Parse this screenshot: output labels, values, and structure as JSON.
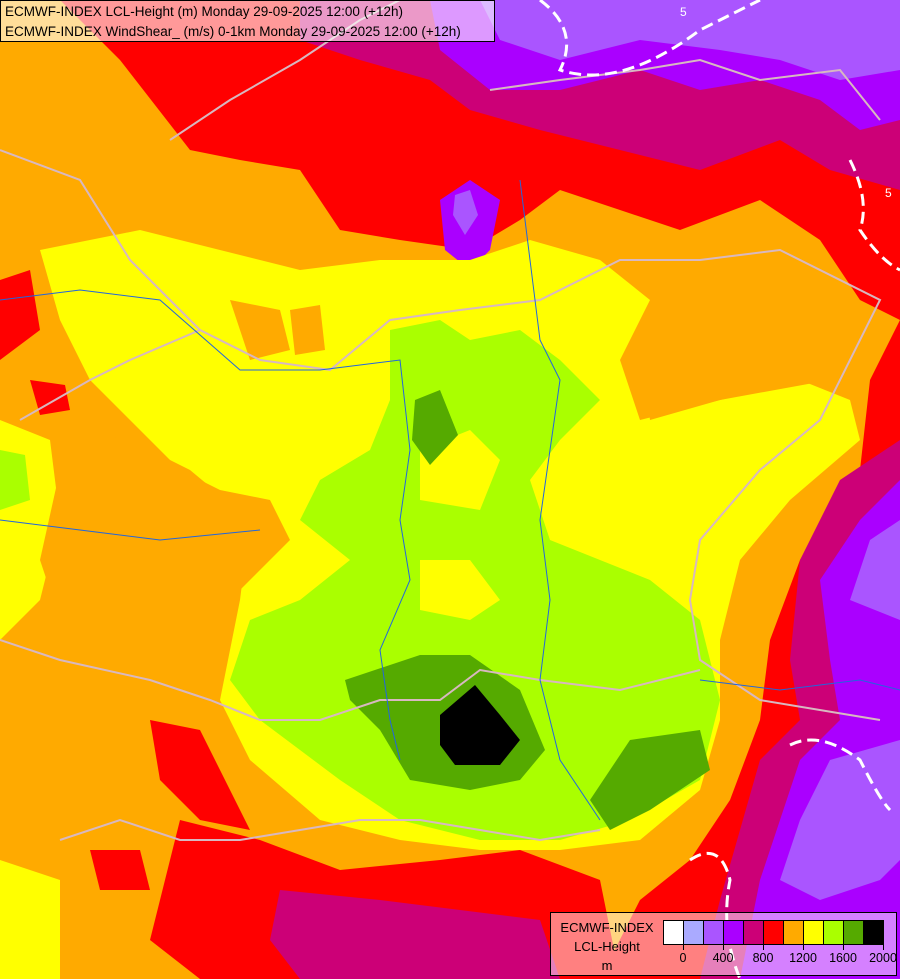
{
  "title": {
    "line1": "ECMWF-INDEX LCL-Height (m) Monday 29-09-2025 12:00 (+12h)",
    "line2": "ECMWF-INDEX WindShear_ (m/s) 0-1km Monday 29-09-2025 12:00 (+12h)"
  },
  "legend": {
    "source": "ECMWF-INDEX",
    "variable": "LCL-Height",
    "unit": "m",
    "colors": [
      "#ffffff",
      "#aaaaff",
      "#aa55ff",
      "#aa00ff",
      "#cc0077",
      "#ff0000",
      "#ffaa00",
      "#ffff00",
      "#aaff00",
      "#55aa00",
      "#000000"
    ],
    "ticks": [
      "0",
      "400",
      "800",
      "1200",
      "1600",
      "2000"
    ]
  },
  "contour_labels": [
    "5",
    "5"
  ]
}
